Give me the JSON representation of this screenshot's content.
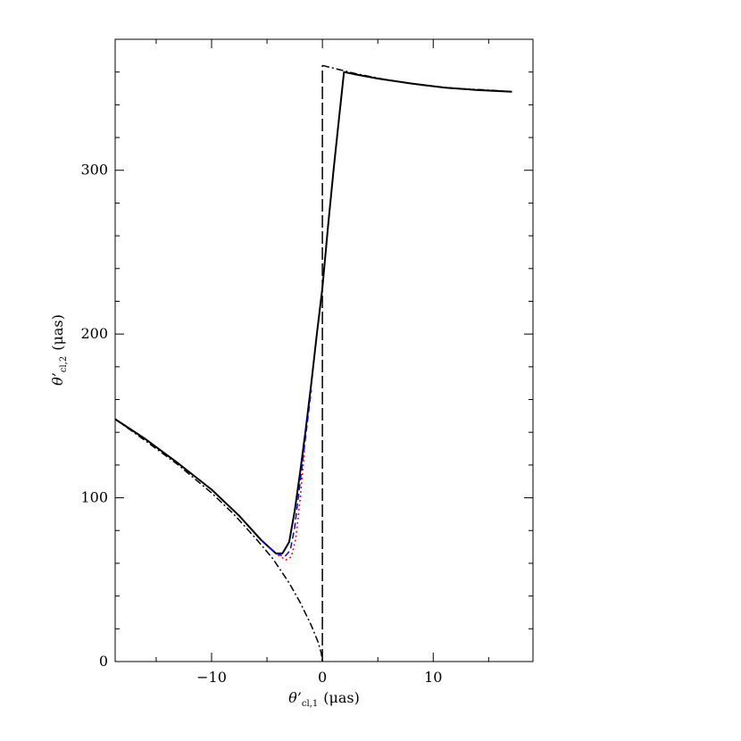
{
  "chart_data": {
    "type": "line",
    "title": "",
    "xlabel": {
      "main": "θ’",
      "sub": "cl,1",
      "unit": "(μas)"
    },
    "ylabel": {
      "main": "θ’",
      "sub": "cl,2",
      "unit": "(μas)"
    },
    "xlim": [
      -18.7,
      19.0
    ],
    "ylim": [
      0,
      380
    ],
    "x_ticks": [
      -10,
      0,
      10
    ],
    "y_ticks": [
      0,
      100,
      200,
      300
    ],
    "grid": false,
    "legend": "none",
    "series": [
      {
        "style": "solid",
        "color": "#000000",
        "x": [
          -18.7,
          -16,
          -13,
          -10,
          -7.5,
          -5.5,
          -4.2,
          -3.6,
          -3.0,
          -2.5,
          -2.0,
          -1.5,
          -1.0,
          -0.5,
          0.0,
          0.5,
          1.0,
          1.5,
          1.95,
          3,
          5,
          8,
          11,
          14,
          17.1
        ],
        "y": [
          148,
          136,
          121,
          105,
          89,
          74,
          66,
          66,
          73,
          92,
          116,
          142,
          170,
          200,
          228,
          265,
          300,
          332,
          360,
          358.5,
          356,
          353,
          350.5,
          349,
          348
        ]
      },
      {
        "style": "dashed",
        "color": "#0000ff",
        "x": [
          -5.5,
          -4.2,
          -3.4,
          -2.9,
          -2.5,
          -2.0,
          -1.5,
          -1.0
        ],
        "y": [
          74,
          66,
          64,
          68,
          82,
          110,
          138,
          166
        ]
      },
      {
        "style": "dotted",
        "color": "#ff0000",
        "x": [
          -4.0,
          -3.3,
          -2.8,
          -2.4,
          -2.0,
          -1.6
        ],
        "y": [
          65,
          62,
          64,
          75,
          100,
          130
        ]
      },
      {
        "style": "dash-dot",
        "color": "#000000",
        "x": [
          -18.7,
          -16,
          -13,
          -10,
          -8,
          -6,
          -4.5,
          -3,
          -2,
          -1,
          -0.4,
          -0.1,
          0.0
        ],
        "y": [
          148,
          135,
          120,
          103,
          90,
          75,
          63,
          48,
          36,
          22,
          12,
          5,
          0
        ]
      },
      {
        "style": "dash-dot",
        "color": "#000000",
        "x": [
          0.0,
          3,
          6,
          9,
          12,
          15,
          17.1
        ],
        "y": [
          364,
          359,
          355,
          352,
          350,
          349,
          348
        ]
      },
      {
        "style": "long-dash",
        "color": "#000000",
        "x": [
          0.0,
          0.0
        ],
        "y": [
          0,
          364
        ]
      }
    ]
  }
}
